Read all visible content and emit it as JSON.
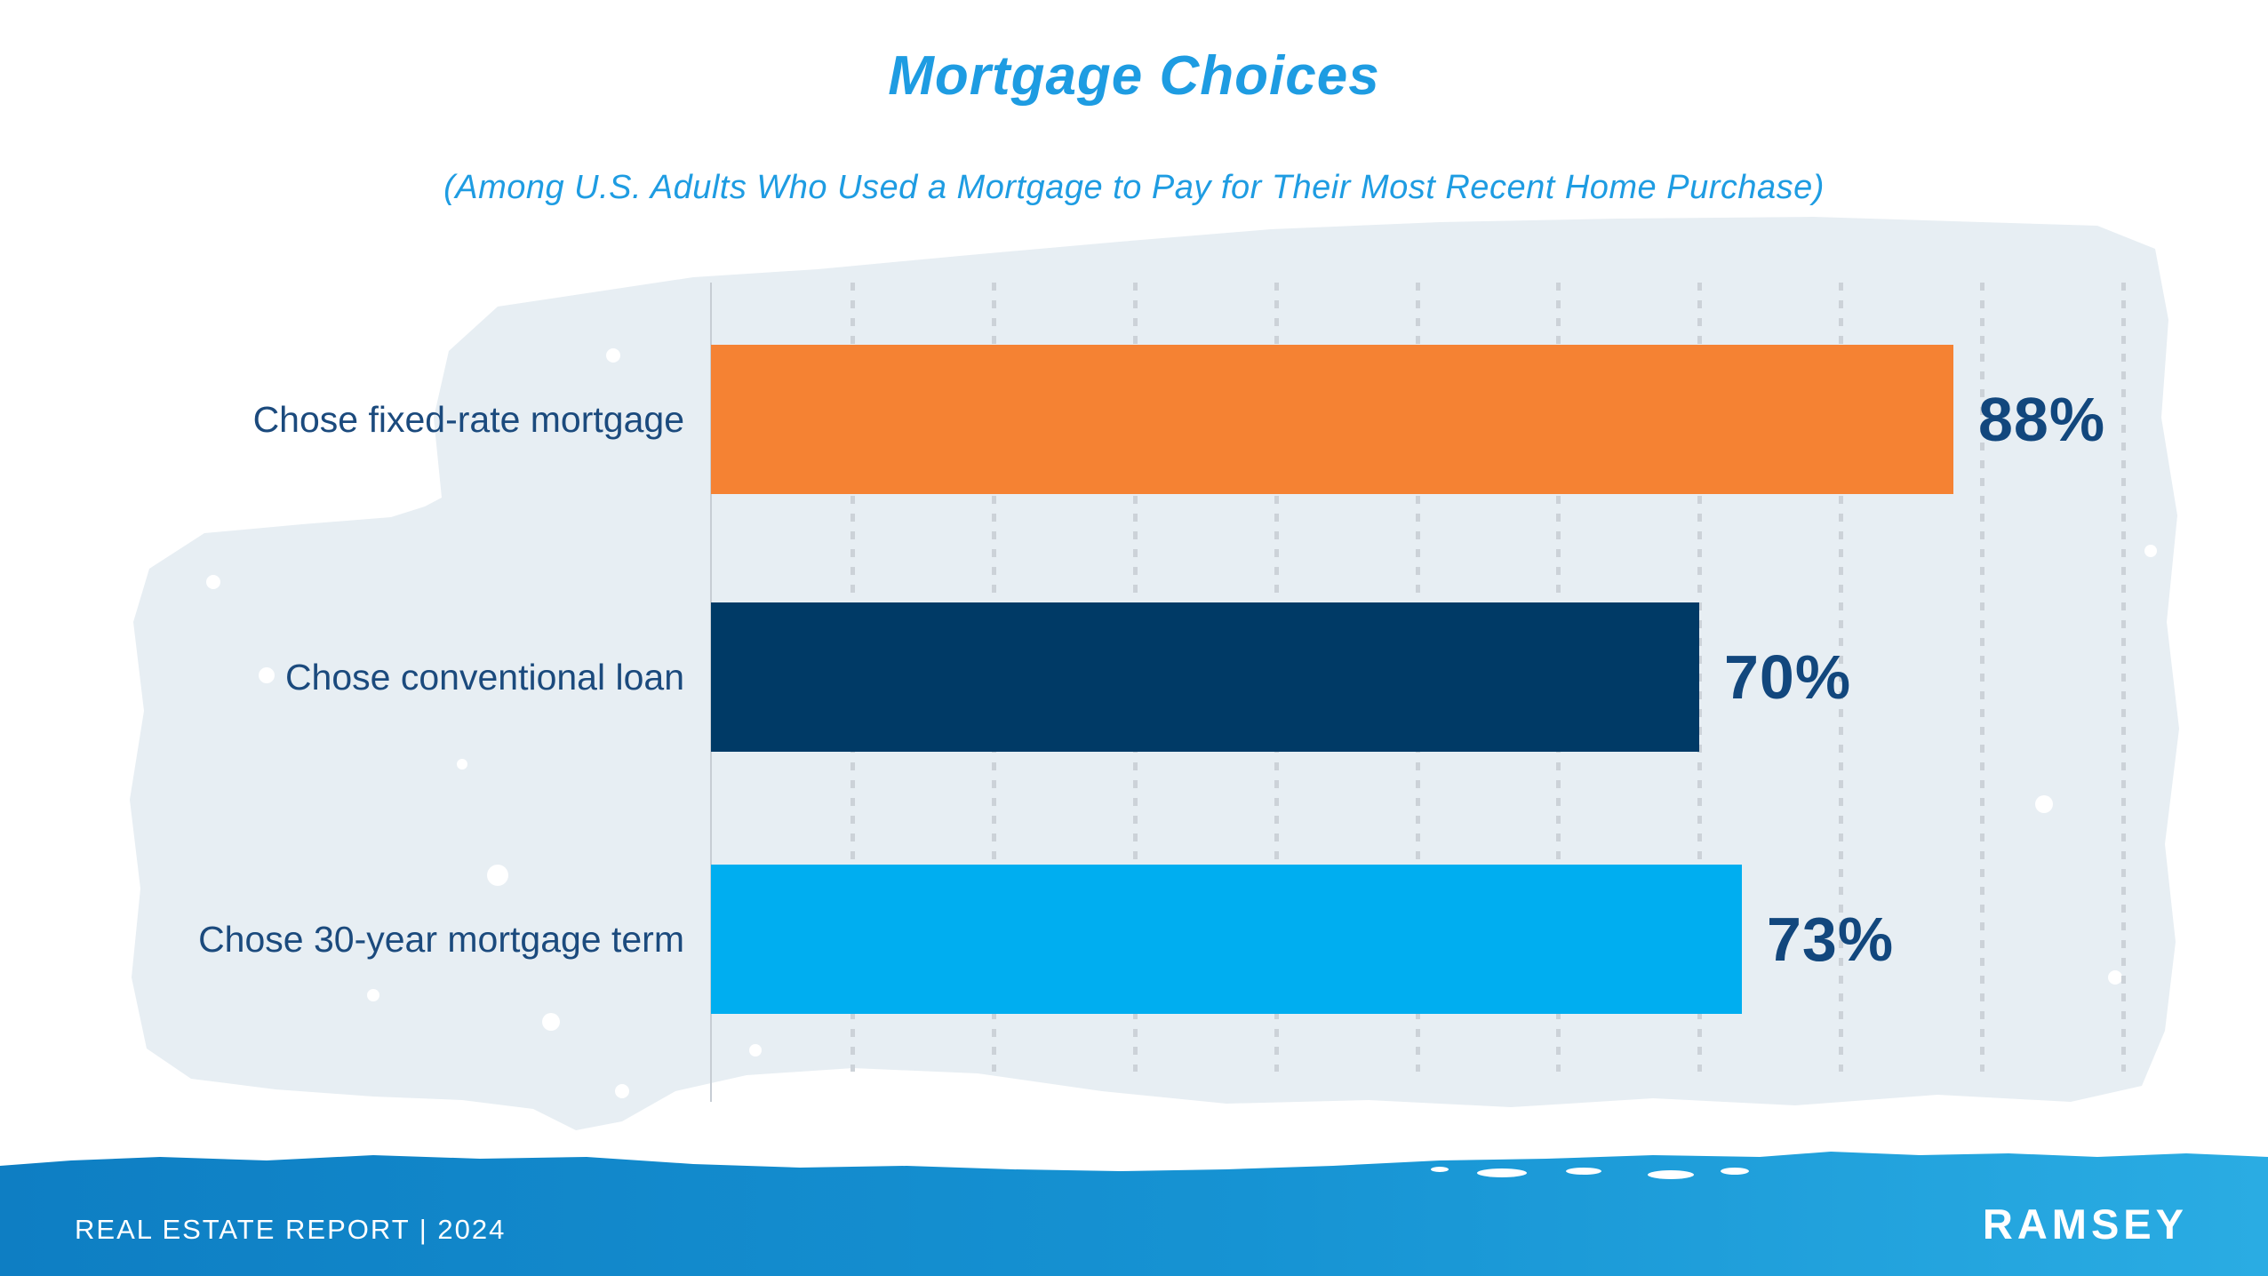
{
  "header": {
    "title": "Mortgage Choices",
    "subtitle": "(Among U.S. Adults Who Used a Mortgage to Pay for Their Most Recent Home Purchase)"
  },
  "chart_data": {
    "type": "bar",
    "orientation": "horizontal",
    "title": "Mortgage Choices",
    "subtitle": "(Among U.S. Adults Who Used a Mortgage to Pay for Their Most Recent Home Purchase)",
    "categories": [
      "Chose fixed-rate mortgage",
      "Chose conventional loan",
      "Chose 30-year mortgage term"
    ],
    "values": [
      88,
      70,
      73
    ],
    "value_labels": [
      "88%",
      "70%",
      "73%"
    ],
    "bar_colors": [
      "#f58233",
      "#003a66",
      "#00aef0"
    ],
    "xlim": [
      0,
      100
    ],
    "gridline_interval_pct": 10,
    "grid": "dotted-vertical-gridlines",
    "legend": "none"
  },
  "footer": {
    "report_label": "REAL ESTATE REPORT | 2024",
    "brand": "RAMSEY"
  },
  "colors": {
    "title_blue": "#1e9ce2",
    "label_navy": "#1b4a7d",
    "value_navy": "#12477d",
    "gridline_gray": "#ccd2d8",
    "wash_blue": "#e7eef3",
    "footer_blue_left": "#0e7ec3",
    "footer_blue_right": "#2aace3",
    "background": "#ffffff"
  }
}
